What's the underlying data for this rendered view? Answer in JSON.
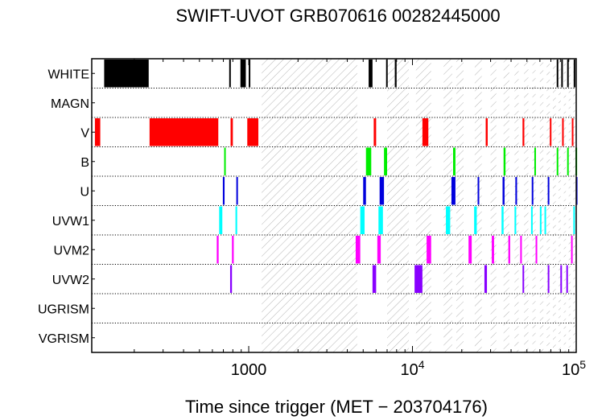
{
  "chart_data": {
    "type": "timeline",
    "title": "SWIFT-UVOT GRB070616 00282445000",
    "xlabel": "Time since trigger (MET − 203704176)",
    "xscale": "log",
    "xlim": [
      110,
      100000
    ],
    "xticks": [
      {
        "value": 1000,
        "label": "1000",
        "exp": ""
      },
      {
        "value": 10000,
        "label": "10",
        "exp": "4"
      },
      {
        "value": 100000,
        "label": "10",
        "exp": "5"
      }
    ],
    "rows": [
      "WHITE",
      "MAGN",
      "V",
      "B",
      "U",
      "UVW1",
      "UVM2",
      "UVW2",
      "UGRISM",
      "VGRISM"
    ],
    "colors": {
      "WHITE": "#000000",
      "MAGN": "#000000",
      "V": "#ff0000",
      "B": "#00ee00",
      "U": "#0000dd",
      "UVW1": "#00ffff",
      "UVM2": "#ff00ff",
      "UVW2": "#8800ff",
      "UGRISM": "#000000",
      "VGRISM": "#000000"
    },
    "gaps": [
      [
        1200,
        4600
      ],
      [
        7000,
        9500
      ],
      [
        10500,
        13000
      ],
      [
        15500,
        17500
      ],
      [
        18500,
        20500
      ],
      [
        24000,
        26500
      ],
      [
        30000,
        32500
      ],
      [
        36000,
        39000
      ],
      [
        42000,
        44500
      ],
      [
        48000,
        51000
      ],
      [
        54000,
        56500
      ],
      [
        60000,
        63000
      ],
      [
        66000,
        69000
      ],
      [
        72000,
        75000
      ],
      [
        78000,
        80500
      ],
      [
        84000,
        86500
      ],
      [
        90000,
        92500
      ],
      [
        96000,
        98500
      ]
    ],
    "exposures": {
      "WHITE": [
        [
          131,
          245
        ],
        [
          760,
          770
        ],
        [
          890,
          960
        ],
        [
          1000,
          1008
        ],
        [
          5400,
          5700
        ],
        [
          6900,
          7000
        ],
        [
          7800,
          8000
        ],
        [
          76000,
          77500
        ],
        [
          81000,
          82500
        ],
        [
          88000,
          89500
        ],
        [
          96500,
          97500
        ]
      ],
      "MAGN": [],
      "V": [
        [
          115,
          124
        ],
        [
          248,
          652
        ],
        [
          775,
          800
        ],
        [
          980,
          1145
        ],
        [
          5800,
          6000
        ],
        [
          11500,
          12500
        ],
        [
          28000,
          28800
        ],
        [
          47000,
          48200
        ],
        [
          69000,
          70500
        ],
        [
          82000,
          83500
        ],
        [
          94000,
          95500
        ]
      ],
      "B": [
        [
          708,
          716
        ],
        [
          5200,
          5600
        ],
        [
          6700,
          7000
        ],
        [
          17700,
          18300
        ],
        [
          36000,
          37000
        ],
        [
          55500,
          56500
        ],
        [
          76000,
          77000
        ],
        [
          88000,
          89500
        ],
        [
          99000,
          99800
        ]
      ],
      "U": [
        [
          695,
          712
        ],
        [
          840,
          856
        ],
        [
          5000,
          5200
        ],
        [
          6300,
          6700
        ],
        [
          17300,
          18300
        ],
        [
          25000,
          25500
        ],
        [
          35500,
          36500
        ],
        [
          42500,
          43500
        ],
        [
          53500,
          54500
        ],
        [
          67000,
          68000
        ],
        [
          99500,
          99900
        ]
      ],
      "UVW1": [
        [
          660,
          690
        ],
        [
          830,
          850
        ],
        [
          4800,
          5100
        ],
        [
          6200,
          6600
        ],
        [
          16000,
          17000
        ],
        [
          23800,
          24700
        ],
        [
          35000,
          36000
        ],
        [
          42000,
          43000
        ],
        [
          53000,
          54000
        ],
        [
          60000,
          61000
        ],
        [
          64000,
          65000
        ],
        [
          96000,
          97500
        ]
      ],
      "UVM2": [
        [
          638,
          655
        ],
        [
          790,
          810
        ],
        [
          4500,
          4800
        ],
        [
          6100,
          6400
        ],
        [
          12200,
          13000
        ],
        [
          22000,
          23000
        ],
        [
          30500,
          31500
        ],
        [
          38500,
          39500
        ],
        [
          45500,
          46500
        ],
        [
          56500,
          57500
        ],
        [
          93000,
          94500
        ]
      ],
      "UVW2": [
        [
          770,
          790
        ],
        [
          5700,
          6000
        ],
        [
          10300,
          11500
        ],
        [
          27500,
          28500
        ],
        [
          47000,
          48000
        ],
        [
          67000,
          68000
        ],
        [
          80000,
          81000
        ],
        [
          87000,
          88000
        ]
      ],
      "UGRISM": [],
      "VGRISM": []
    }
  }
}
